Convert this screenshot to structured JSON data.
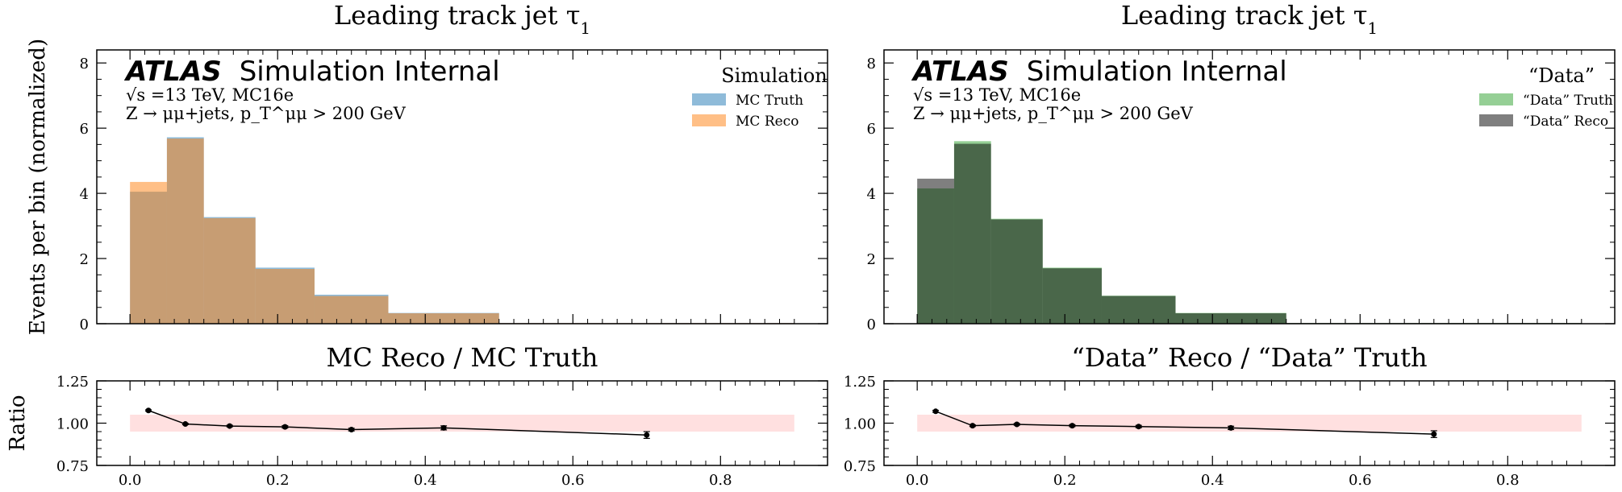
{
  "chart_data": [
    {
      "type": "bar",
      "panel": "main",
      "title": "Leading track jet τ",
      "title_sub": "1",
      "ylabel": "Events per bin (normalized)",
      "ylim": [
        0,
        8.4
      ],
      "yticks": [
        0,
        2,
        4,
        6,
        8
      ],
      "xlim": [
        -0.045,
        0.945
      ],
      "bin_edges": [
        0.0,
        0.05,
        0.1,
        0.17,
        0.25,
        0.35,
        0.5,
        0.9
      ],
      "atlas_label": "ATLAS",
      "atlas_suffix": "Simulation Internal",
      "info_lines": [
        "√s =13 TeV, MC16e",
        "Z → μμ+jets, p_T^μμ > 200 GeV"
      ],
      "legend_title": "Simulation",
      "legend_placement": "top-right",
      "series": [
        {
          "name": "MC Truth",
          "color": "#1f77b4",
          "alpha": 0.5,
          "values": [
            4.05,
            5.72,
            3.27,
            1.72,
            0.89,
            0.33,
            0.02
          ]
        },
        {
          "name": "MC Reco",
          "color": "#ff7f0e",
          "alpha": 0.5,
          "values": [
            4.35,
            5.68,
            3.24,
            1.68,
            0.85,
            0.32,
            0.02
          ]
        }
      ]
    },
    {
      "type": "line",
      "panel": "ratio",
      "title": "MC Reco / MC Truth",
      "ylabel": "Ratio",
      "ylim": [
        0.75,
        1.25
      ],
      "yticks": [
        "0.75",
        "1.00",
        "1.25"
      ],
      "xlim": [
        -0.045,
        0.945
      ],
      "xticks": [
        "0.0",
        "0.2",
        "0.4",
        "0.6",
        "0.8"
      ],
      "band": {
        "low": 0.95,
        "high": 1.05,
        "xrange": [
          0.0,
          0.9
        ],
        "color": "#ffcccc"
      },
      "x": [
        0.025,
        0.075,
        0.135,
        0.21,
        0.3,
        0.425,
        0.7
      ],
      "y": [
        1.075,
        0.995,
        0.983,
        0.978,
        0.962,
        0.972,
        0.93
      ],
      "yerr": [
        0.004,
        0.004,
        0.005,
        0.007,
        0.008,
        0.012,
        0.02
      ]
    },
    {
      "type": "bar",
      "panel": "main",
      "title": "Leading track jet τ",
      "title_sub": "1",
      "ylim": [
        0,
        8.4
      ],
      "yticks": [
        0,
        2,
        4,
        6,
        8
      ],
      "xlim": [
        -0.045,
        0.945
      ],
      "bin_edges": [
        0.0,
        0.05,
        0.1,
        0.17,
        0.25,
        0.35,
        0.5,
        0.9
      ],
      "atlas_label": "ATLAS",
      "atlas_suffix": "Simulation Internal",
      "info_lines": [
        "√s =13 TeV, MC16e",
        "Z → μμ+jets, p_T^μμ > 200 GeV"
      ],
      "legend_title": "“Data”",
      "legend_placement": "top-right",
      "series": [
        {
          "name": "“Data” Truth",
          "color": "#2ca02c",
          "alpha": 0.5,
          "values": [
            4.15,
            5.6,
            3.22,
            1.72,
            0.86,
            0.33,
            0.02
          ]
        },
        {
          "name": "“Data” Reco",
          "color": "#000000",
          "alpha": 0.5,
          "values": [
            4.45,
            5.52,
            3.2,
            1.7,
            0.85,
            0.32,
            0.02
          ]
        }
      ]
    },
    {
      "type": "line",
      "panel": "ratio",
      "title": "“Data” Reco / “Data” Truth",
      "ylim": [
        0.75,
        1.25
      ],
      "yticks": [
        "0.75",
        "1.00",
        "1.25"
      ],
      "xlim": [
        -0.045,
        0.945
      ],
      "xticks": [
        "0.0",
        "0.2",
        "0.4",
        "0.6",
        "0.8"
      ],
      "band": {
        "low": 0.95,
        "high": 1.05,
        "xrange": [
          0.0,
          0.9
        ],
        "color": "#ffcccc"
      },
      "x": [
        0.025,
        0.075,
        0.135,
        0.21,
        0.3,
        0.425,
        0.7
      ],
      "y": [
        1.07,
        0.985,
        0.993,
        0.985,
        0.98,
        0.972,
        0.935
      ],
      "yerr": [
        0.006,
        0.005,
        0.005,
        0.006,
        0.007,
        0.01,
        0.02
      ]
    }
  ]
}
